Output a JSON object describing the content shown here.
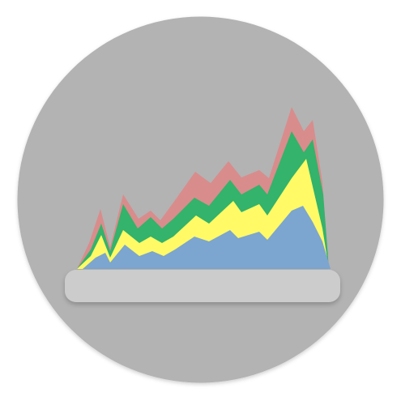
{
  "icon": {
    "name": "stacked-area-chart-icon",
    "background_color": "#b3b3b3",
    "base_color": "#cccccc",
    "layer_colors": {
      "top": "#d98c8c",
      "upper_middle": "#33b36b",
      "lower_middle": "#fffa66",
      "bottom": "#7ca5cf"
    }
  }
}
